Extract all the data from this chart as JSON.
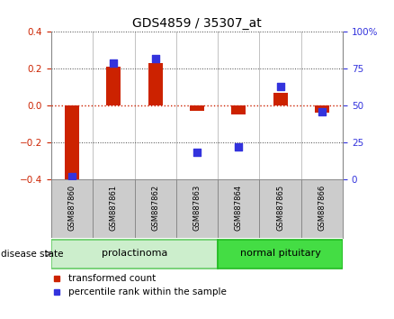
{
  "title": "GDS4859 / 35307_at",
  "samples": [
    "GSM887860",
    "GSM887861",
    "GSM887862",
    "GSM887863",
    "GSM887864",
    "GSM887865",
    "GSM887866"
  ],
  "red_values": [
    -0.42,
    0.21,
    0.23,
    -0.03,
    -0.05,
    0.07,
    -0.04
  ],
  "blue_values": [
    2.0,
    79.0,
    82.0,
    18.0,
    22.0,
    63.0,
    46.0
  ],
  "red_color": "#cc2200",
  "blue_color": "#3333dd",
  "left_ylim": [
    -0.4,
    0.4
  ],
  "right_ylim": [
    0,
    100
  ],
  "left_yticks": [
    -0.4,
    -0.2,
    0.0,
    0.2,
    0.4
  ],
  "right_yticks": [
    0,
    25,
    50,
    75,
    100
  ],
  "right_yticklabels": [
    "0",
    "25",
    "50",
    "75",
    "100%"
  ],
  "groups": [
    {
      "label": "prolactinoma",
      "indices": [
        0,
        1,
        2,
        3
      ],
      "light_color": "#cceecc",
      "dark_color": "#66cc66"
    },
    {
      "label": "normal pituitary",
      "indices": [
        4,
        5,
        6
      ],
      "light_color": "#44dd44",
      "dark_color": "#22bb22"
    }
  ],
  "disease_state_label": "disease state",
  "legend_red": "transformed count",
  "legend_blue": "percentile rank within the sample",
  "bar_width": 0.35,
  "dot_size": 40,
  "hline_color": "#cc2200",
  "grid_color": "#444444",
  "label_bg": "#cccccc",
  "label_border": "#888888"
}
